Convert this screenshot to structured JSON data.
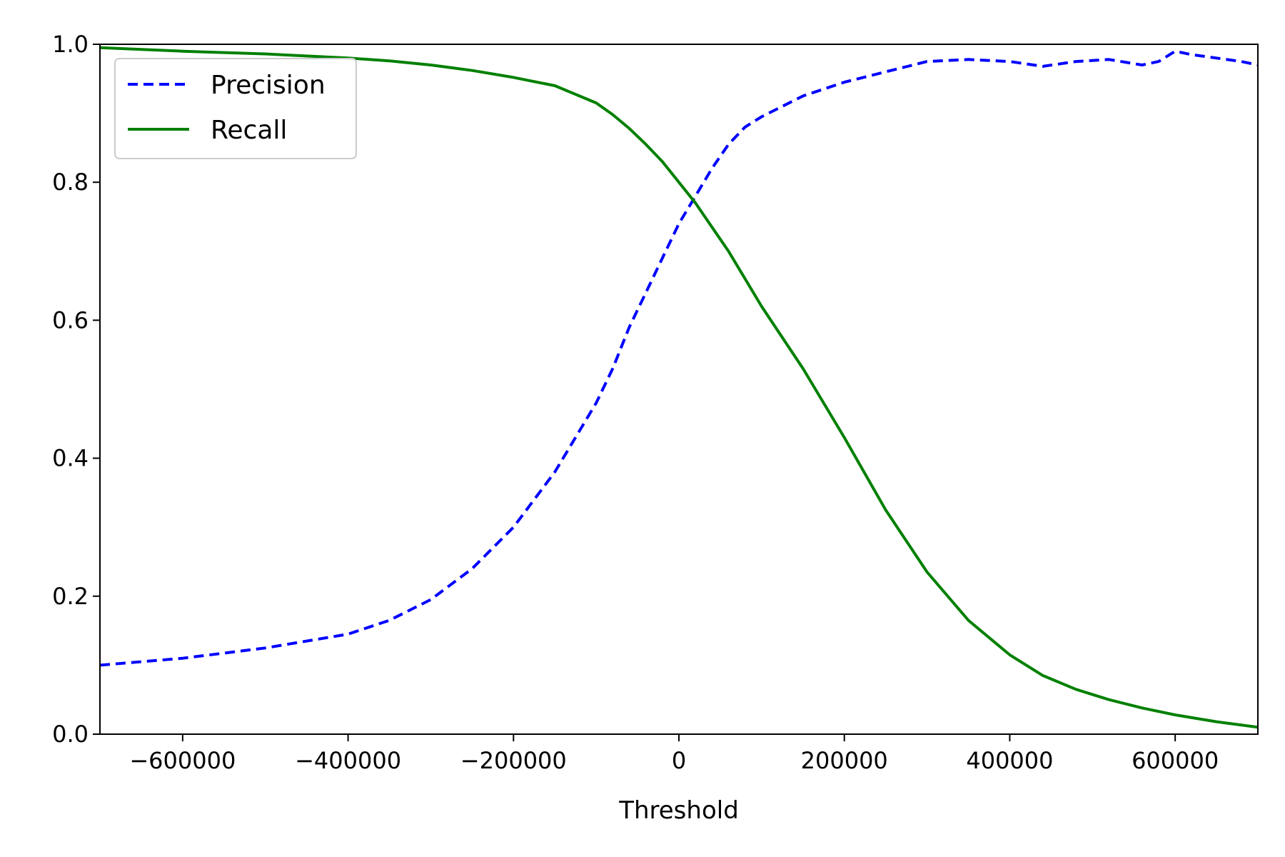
{
  "chart_data": {
    "type": "line",
    "title": "",
    "xlabel": "Threshold",
    "ylabel": "",
    "xlim": [
      -700000,
      700000
    ],
    "ylim": [
      0,
      1
    ],
    "x_ticks": [
      -600000,
      -400000,
      -200000,
      0,
      200000,
      400000,
      600000
    ],
    "x_tick_labels": [
      "−600000",
      "−400000",
      "−200000",
      "0",
      "200000",
      "400000",
      "600000"
    ],
    "y_ticks": [
      0,
      0.2,
      0.4,
      0.6,
      0.8,
      1.0
    ],
    "y_tick_labels": [
      "0.0",
      "0.2",
      "0.4",
      "0.6",
      "0.8",
      "1.0"
    ],
    "grid": false,
    "legend_position": "top-left",
    "series": [
      {
        "name": "Precision",
        "color": "#0000ff",
        "style": "dashed",
        "x": [
          -700000,
          -600000,
          -500000,
          -400000,
          -350000,
          -300000,
          -250000,
          -200000,
          -150000,
          -100000,
          -80000,
          -60000,
          -40000,
          -20000,
          0,
          20000,
          40000,
          60000,
          80000,
          100000,
          150000,
          200000,
          250000,
          300000,
          350000,
          400000,
          440000,
          480000,
          520000,
          560000,
          580000,
          600000,
          620000,
          650000,
          680000,
          700000
        ],
        "y": [
          0.1,
          0.11,
          0.125,
          0.145,
          0.165,
          0.195,
          0.24,
          0.3,
          0.38,
          0.48,
          0.53,
          0.59,
          0.64,
          0.69,
          0.74,
          0.78,
          0.82,
          0.855,
          0.88,
          0.895,
          0.925,
          0.945,
          0.96,
          0.975,
          0.978,
          0.975,
          0.968,
          0.975,
          0.978,
          0.97,
          0.975,
          0.99,
          0.985,
          0.98,
          0.975,
          0.97
        ]
      },
      {
        "name": "Recall",
        "color": "#008000",
        "style": "solid",
        "x": [
          -700000,
          -600000,
          -500000,
          -400000,
          -350000,
          -300000,
          -250000,
          -200000,
          -150000,
          -100000,
          -80000,
          -60000,
          -40000,
          -20000,
          0,
          20000,
          40000,
          60000,
          80000,
          100000,
          150000,
          200000,
          250000,
          300000,
          350000,
          400000,
          440000,
          480000,
          520000,
          560000,
          600000,
          650000,
          700000
        ],
        "y": [
          0.995,
          0.99,
          0.986,
          0.98,
          0.976,
          0.97,
          0.962,
          0.952,
          0.94,
          0.915,
          0.898,
          0.878,
          0.855,
          0.83,
          0.8,
          0.77,
          0.735,
          0.7,
          0.66,
          0.62,
          0.53,
          0.43,
          0.325,
          0.235,
          0.165,
          0.115,
          0.085,
          0.065,
          0.05,
          0.038,
          0.028,
          0.018,
          0.01
        ]
      }
    ]
  }
}
